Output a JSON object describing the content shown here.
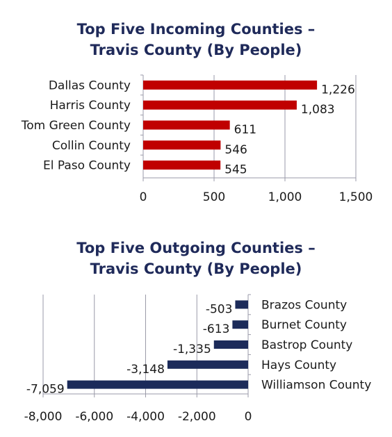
{
  "colors": {
    "title": "#1f2a5a",
    "incoming_bar": "#c00000",
    "outgoing_bar": "#1c2b5a",
    "axis": "#9a9aa8",
    "text": "#1a1a1a"
  },
  "chart_data": [
    {
      "type": "bar",
      "orientation": "horizontal",
      "title_line1": "Top Five Incoming Counties –",
      "title_line2": "Travis County (By People)",
      "categories": [
        "Dallas County",
        "Harris County",
        "Tom Green County",
        "Collin County",
        "El Paso County"
      ],
      "values": [
        1226,
        1083,
        611,
        546,
        545
      ],
      "value_labels": [
        "1,226",
        "1,083",
        "611",
        "546",
        "545"
      ],
      "xlim": [
        0,
        1500
      ],
      "ticks": [
        0,
        500,
        1000,
        1500
      ],
      "tick_labels": [
        "0",
        "500",
        "1,000",
        "1,500"
      ],
      "grid": true
    },
    {
      "type": "bar",
      "orientation": "horizontal",
      "title_line1": "Top Five Outgoing Counties –",
      "title_line2": "Travis County (By People)",
      "categories": [
        "Brazos County",
        "Burnet County",
        "Bastrop County",
        "Hays County",
        "Williamson County"
      ],
      "values": [
        -503,
        -613,
        -1335,
        -3148,
        -7059
      ],
      "value_labels": [
        "-503",
        "-613",
        "-1,335",
        "-3,148",
        "-7,059"
      ],
      "xlim": [
        -8000,
        0
      ],
      "ticks": [
        -8000,
        -6000,
        -4000,
        -2000,
        0
      ],
      "tick_labels": [
        "-8,000",
        "-6,000",
        "-4,000",
        "-2,000",
        "0"
      ],
      "grid": true
    }
  ]
}
